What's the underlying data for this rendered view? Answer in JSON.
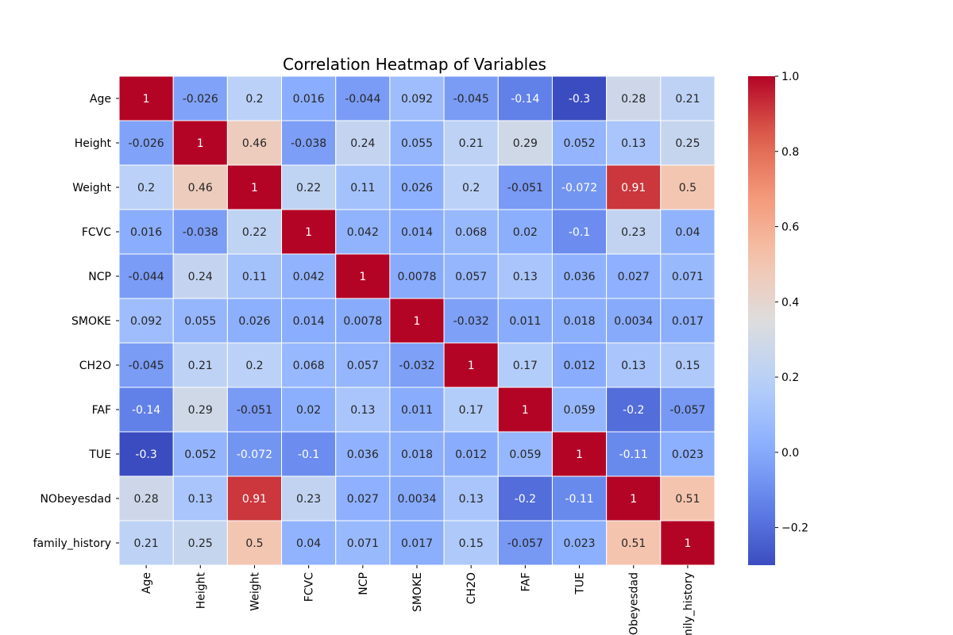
{
  "chart_data": {
    "type": "heatmap",
    "title": "Correlation Heatmap of Variables",
    "xlabel": "",
    "ylabel": "",
    "variables": [
      "Age",
      "Height",
      "Weight",
      "FCVC",
      "NCP",
      "SMOKE",
      "CH2O",
      "FAF",
      "TUE",
      "NObeyesdad",
      "family_history"
    ],
    "x_tick_labels": [
      "Age",
      "Height",
      "Weight",
      "FCVC",
      "NCP",
      "SMOKE",
      "CH2O",
      "FAF",
      "TUE",
      "NObeyesdad",
      "family_history"
    ],
    "y_tick_labels": [
      "Age",
      "Height",
      "Weight",
      "FCVC",
      "NCP",
      "SMOKE",
      "CH2O",
      "FAF",
      "TUE",
      "NObeyesdad",
      "family_history"
    ],
    "values": [
      [
        1,
        -0.026,
        0.2,
        0.016,
        -0.044,
        0.092,
        -0.045,
        -0.14,
        -0.3,
        0.28,
        0.21
      ],
      [
        -0.026,
        1,
        0.46,
        -0.038,
        0.24,
        0.055,
        0.21,
        0.29,
        0.052,
        0.13,
        0.25
      ],
      [
        0.2,
        0.46,
        1,
        0.22,
        0.11,
        0.026,
        0.2,
        -0.051,
        -0.072,
        0.91,
        0.5
      ],
      [
        0.016,
        -0.038,
        0.22,
        1,
        0.042,
        0.014,
        0.068,
        0.02,
        -0.1,
        0.23,
        0.04
      ],
      [
        -0.044,
        0.24,
        0.11,
        0.042,
        1,
        0.0078,
        0.057,
        0.13,
        0.036,
        0.027,
        0.071
      ],
      [
        0.092,
        0.055,
        0.026,
        0.014,
        0.0078,
        1,
        -0.032,
        0.011,
        0.018,
        0.0034,
        0.017
      ],
      [
        -0.045,
        0.21,
        0.2,
        0.068,
        0.057,
        -0.032,
        1,
        0.17,
        0.012,
        0.13,
        0.15
      ],
      [
        -0.14,
        0.29,
        -0.051,
        0.02,
        0.13,
        0.011,
        0.17,
        1,
        0.059,
        -0.2,
        -0.057
      ],
      [
        -0.3,
        0.052,
        -0.072,
        -0.1,
        0.036,
        0.018,
        0.012,
        0.059,
        1,
        -0.11,
        0.023
      ],
      [
        0.28,
        0.13,
        0.91,
        0.23,
        0.027,
        0.0034,
        0.13,
        -0.2,
        -0.11,
        1,
        0.51
      ],
      [
        0.21,
        0.25,
        0.5,
        0.04,
        0.071,
        0.017,
        0.15,
        -0.057,
        0.023,
        0.51,
        1
      ]
    ],
    "colormap": "coolwarm",
    "vmin": -0.3,
    "vmax": 1.0,
    "colorbar_ticks": [
      -0.2,
      0.0,
      0.2,
      0.4,
      0.6,
      0.8,
      1.0
    ],
    "colorbar_tick_labels": [
      "−0.2",
      "0.0",
      "0.2",
      "0.4",
      "0.6",
      "0.8",
      "1.0"
    ],
    "annotated": true,
    "legend": "none",
    "colorbar": "right"
  }
}
